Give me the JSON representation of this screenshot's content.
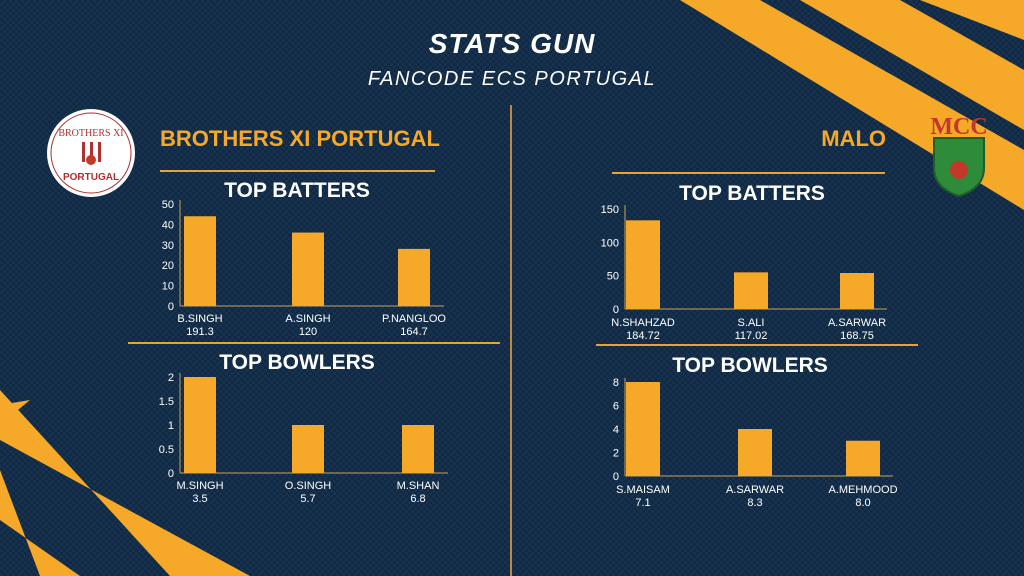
{
  "header": {
    "title": "STATS GUN",
    "subtitle": "FANCODE ECS PORTUGAL"
  },
  "teams": [
    {
      "name": "BROTHERS XI PORTUGAL"
    },
    {
      "name": "MALO"
    }
  ],
  "colors": {
    "bar": "#f6a829",
    "accent": "#f6a829",
    "background": "#102a46"
  },
  "chart_data": [
    {
      "type": "bar",
      "title": "TOP BATTERS",
      "categories": [
        "B.SINGH",
        "A.SINGH",
        "P.NANGLOO"
      ],
      "sublabels": [
        "191.3",
        "120",
        "164.7"
      ],
      "values": [
        44,
        36,
        28
      ],
      "ylim": [
        0,
        50
      ],
      "yticks": [
        0,
        10,
        20,
        30,
        40,
        50
      ]
    },
    {
      "type": "bar",
      "title": "TOP BOWLERS",
      "categories": [
        "M.SINGH",
        "O.SINGH",
        "M.SHAN"
      ],
      "sublabels": [
        "3.5",
        "5.7",
        "6.8"
      ],
      "values": [
        2,
        1,
        1
      ],
      "ylim": [
        0,
        2
      ],
      "yticks": [
        0,
        0.5,
        1,
        1.5,
        2
      ]
    },
    {
      "type": "bar",
      "title": "TOP BATTERS",
      "categories": [
        "N.SHAHZAD",
        "S.ALI",
        "A.SARWAR"
      ],
      "sublabels": [
        "184.72",
        "117.02",
        "168.75"
      ],
      "values": [
        133,
        55,
        54
      ],
      "ylim": [
        0,
        150
      ],
      "yticks": [
        0,
        50,
        100,
        150
      ]
    },
    {
      "type": "bar",
      "title": "TOP BOWLERS",
      "categories": [
        "S.MAISAM",
        "A.SARWAR",
        "A.MEHMOOD"
      ],
      "sublabels": [
        "7.1",
        "8.3",
        "8.0"
      ],
      "values": [
        8,
        4,
        3
      ],
      "ylim": [
        0,
        8
      ],
      "yticks": [
        0,
        2,
        4,
        6,
        8
      ]
    }
  ]
}
